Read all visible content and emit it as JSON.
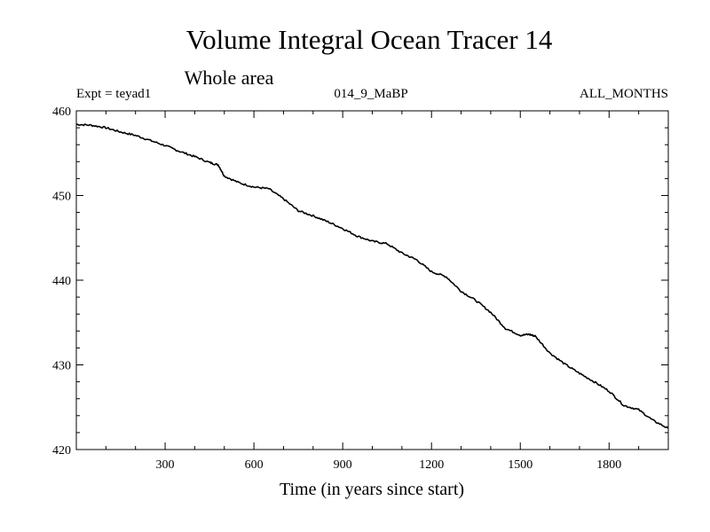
{
  "chart_data": {
    "type": "line",
    "title": "Volume Integral Ocean Tracer 14",
    "subtitle": "Whole area",
    "annotations": {
      "left": "Expt = teyad1",
      "center": "014_9_MaBP",
      "right": "ALL_MONTHS"
    },
    "xlabel": "Time (in years since start)",
    "ylabel": "",
    "xlim": [
      0,
      2000
    ],
    "ylim": [
      420,
      460
    ],
    "xticks": [
      300,
      600,
      900,
      1200,
      1500,
      1800
    ],
    "yticks": [
      420,
      430,
      440,
      450,
      460
    ],
    "xtick_labels": [
      "300",
      "600",
      "900",
      "1200",
      "1500",
      "1800"
    ],
    "ytick_labels": [
      "420",
      "430",
      "440",
      "450",
      "460"
    ],
    "grid": false,
    "series": [
      {
        "name": "Volume Integral Ocean Tracer 14",
        "x": [
          0,
          50,
          100,
          150,
          200,
          250,
          300,
          350,
          400,
          450,
          480,
          500,
          550,
          600,
          650,
          700,
          750,
          800,
          850,
          900,
          950,
          1000,
          1050,
          1100,
          1150,
          1200,
          1250,
          1300,
          1350,
          1400,
          1450,
          1500,
          1530,
          1550,
          1600,
          1650,
          1700,
          1750,
          1800,
          1850,
          1900,
          1950,
          2000
        ],
        "values": [
          458.4,
          458.3,
          458.0,
          457.5,
          457.1,
          456.5,
          455.9,
          455.2,
          454.6,
          453.9,
          453.6,
          452.3,
          451.5,
          451.0,
          450.8,
          449.6,
          448.2,
          447.6,
          446.9,
          446.1,
          445.2,
          444.6,
          444.3,
          443.2,
          442.4,
          441.0,
          440.4,
          438.7,
          437.6,
          436.2,
          434.3,
          433.5,
          433.6,
          433.4,
          431.4,
          430.1,
          429.0,
          428.0,
          426.9,
          425.2,
          424.7,
          423.4,
          422.5
        ]
      }
    ]
  }
}
